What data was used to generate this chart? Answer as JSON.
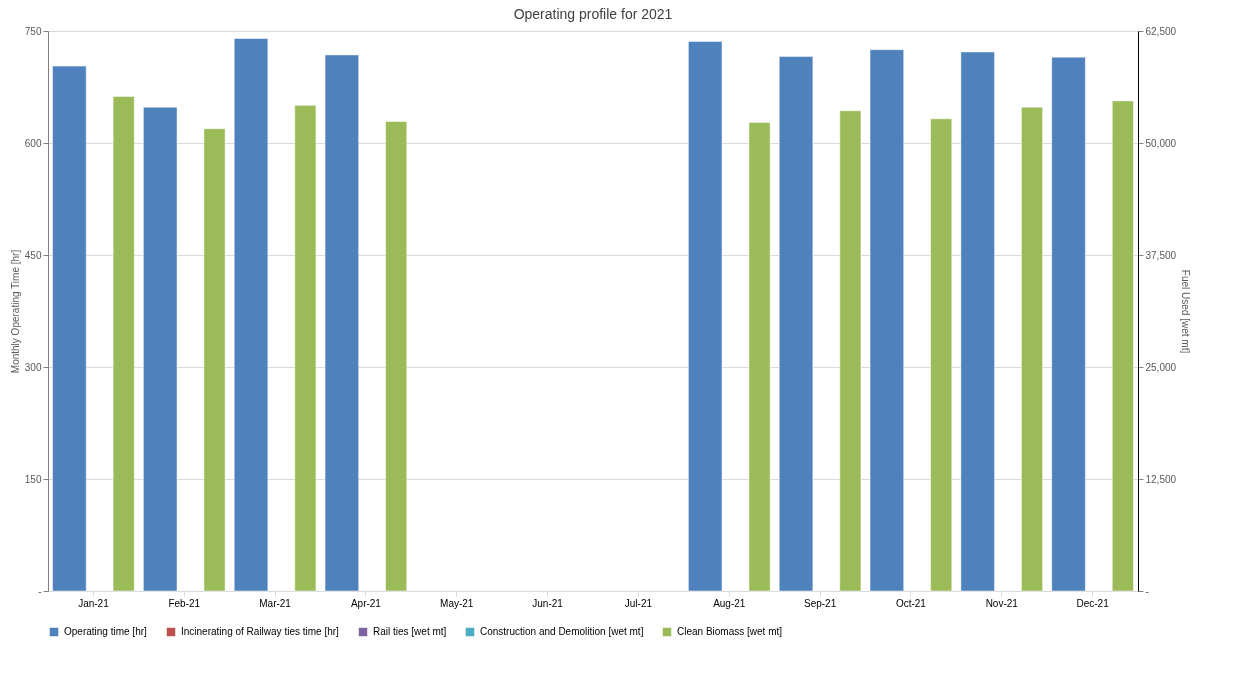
{
  "chart_data": {
    "type": "bar",
    "title": "Operating profile for 2021",
    "ylabel": "Monthly Operating Time [hr]",
    "y2label": "Fuel Used  [wet mt]",
    "categories": [
      "Jan-21",
      "Feb-21",
      "Mar-21",
      "Apr-21",
      "May-21",
      "Jun-21",
      "Jul-21",
      "Aug-21",
      "Sep-21",
      "Oct-21",
      "Nov-21",
      "Dec-21"
    ],
    "series": [
      {
        "name": "Operating time   [hr]",
        "color": "#4f81bd",
        "values": [
          703,
          648,
          740,
          718,
          null,
          null,
          null,
          736,
          716,
          725,
          722,
          715
        ]
      },
      {
        "name": "Incinerating of Railway ties time   [hr]",
        "color": "#c0504d",
        "values": [
          null,
          null,
          null,
          null,
          null,
          null,
          null,
          null,
          null,
          null,
          null,
          null
        ]
      },
      {
        "name": "Rail ties   [wet mt]",
        "color": "#8064a2",
        "axis": "y2",
        "values": [
          null,
          null,
          null,
          null,
          null,
          null,
          null,
          null,
          null,
          null,
          null,
          null
        ]
      },
      {
        "name": "Construction and Demolition   [wet mt]",
        "color": "#4bacc6",
        "axis": "y2",
        "values": [
          null,
          null,
          null,
          null,
          null,
          null,
          null,
          null,
          null,
          null,
          null,
          null
        ]
      },
      {
        "name": "Clean Biomass   [wet mt]",
        "color": "#9bbb59",
        "axis": "y2",
        "values": [
          55200,
          51600,
          54200,
          52400,
          null,
          null,
          null,
          52300,
          53600,
          52700,
          54000,
          54700
        ]
      }
    ],
    "ylim": [
      0,
      750
    ],
    "yticks": [
      {
        "value": 0,
        "label": "-"
      },
      150,
      300,
      450,
      600,
      750
    ],
    "y2lim": [
      0,
      62500
    ],
    "y2ticks": [
      {
        "value": 0,
        "label": "-"
      },
      {
        "value": 12500,
        "label": "12,500"
      },
      {
        "value": 25000,
        "label": "25,000"
      },
      {
        "value": 37500,
        "label": "37,500"
      },
      {
        "value": 50000,
        "label": "50,000"
      },
      {
        "value": 62500,
        "label": "62,500"
      }
    ],
    "grid": "y",
    "legend": "bottom"
  }
}
